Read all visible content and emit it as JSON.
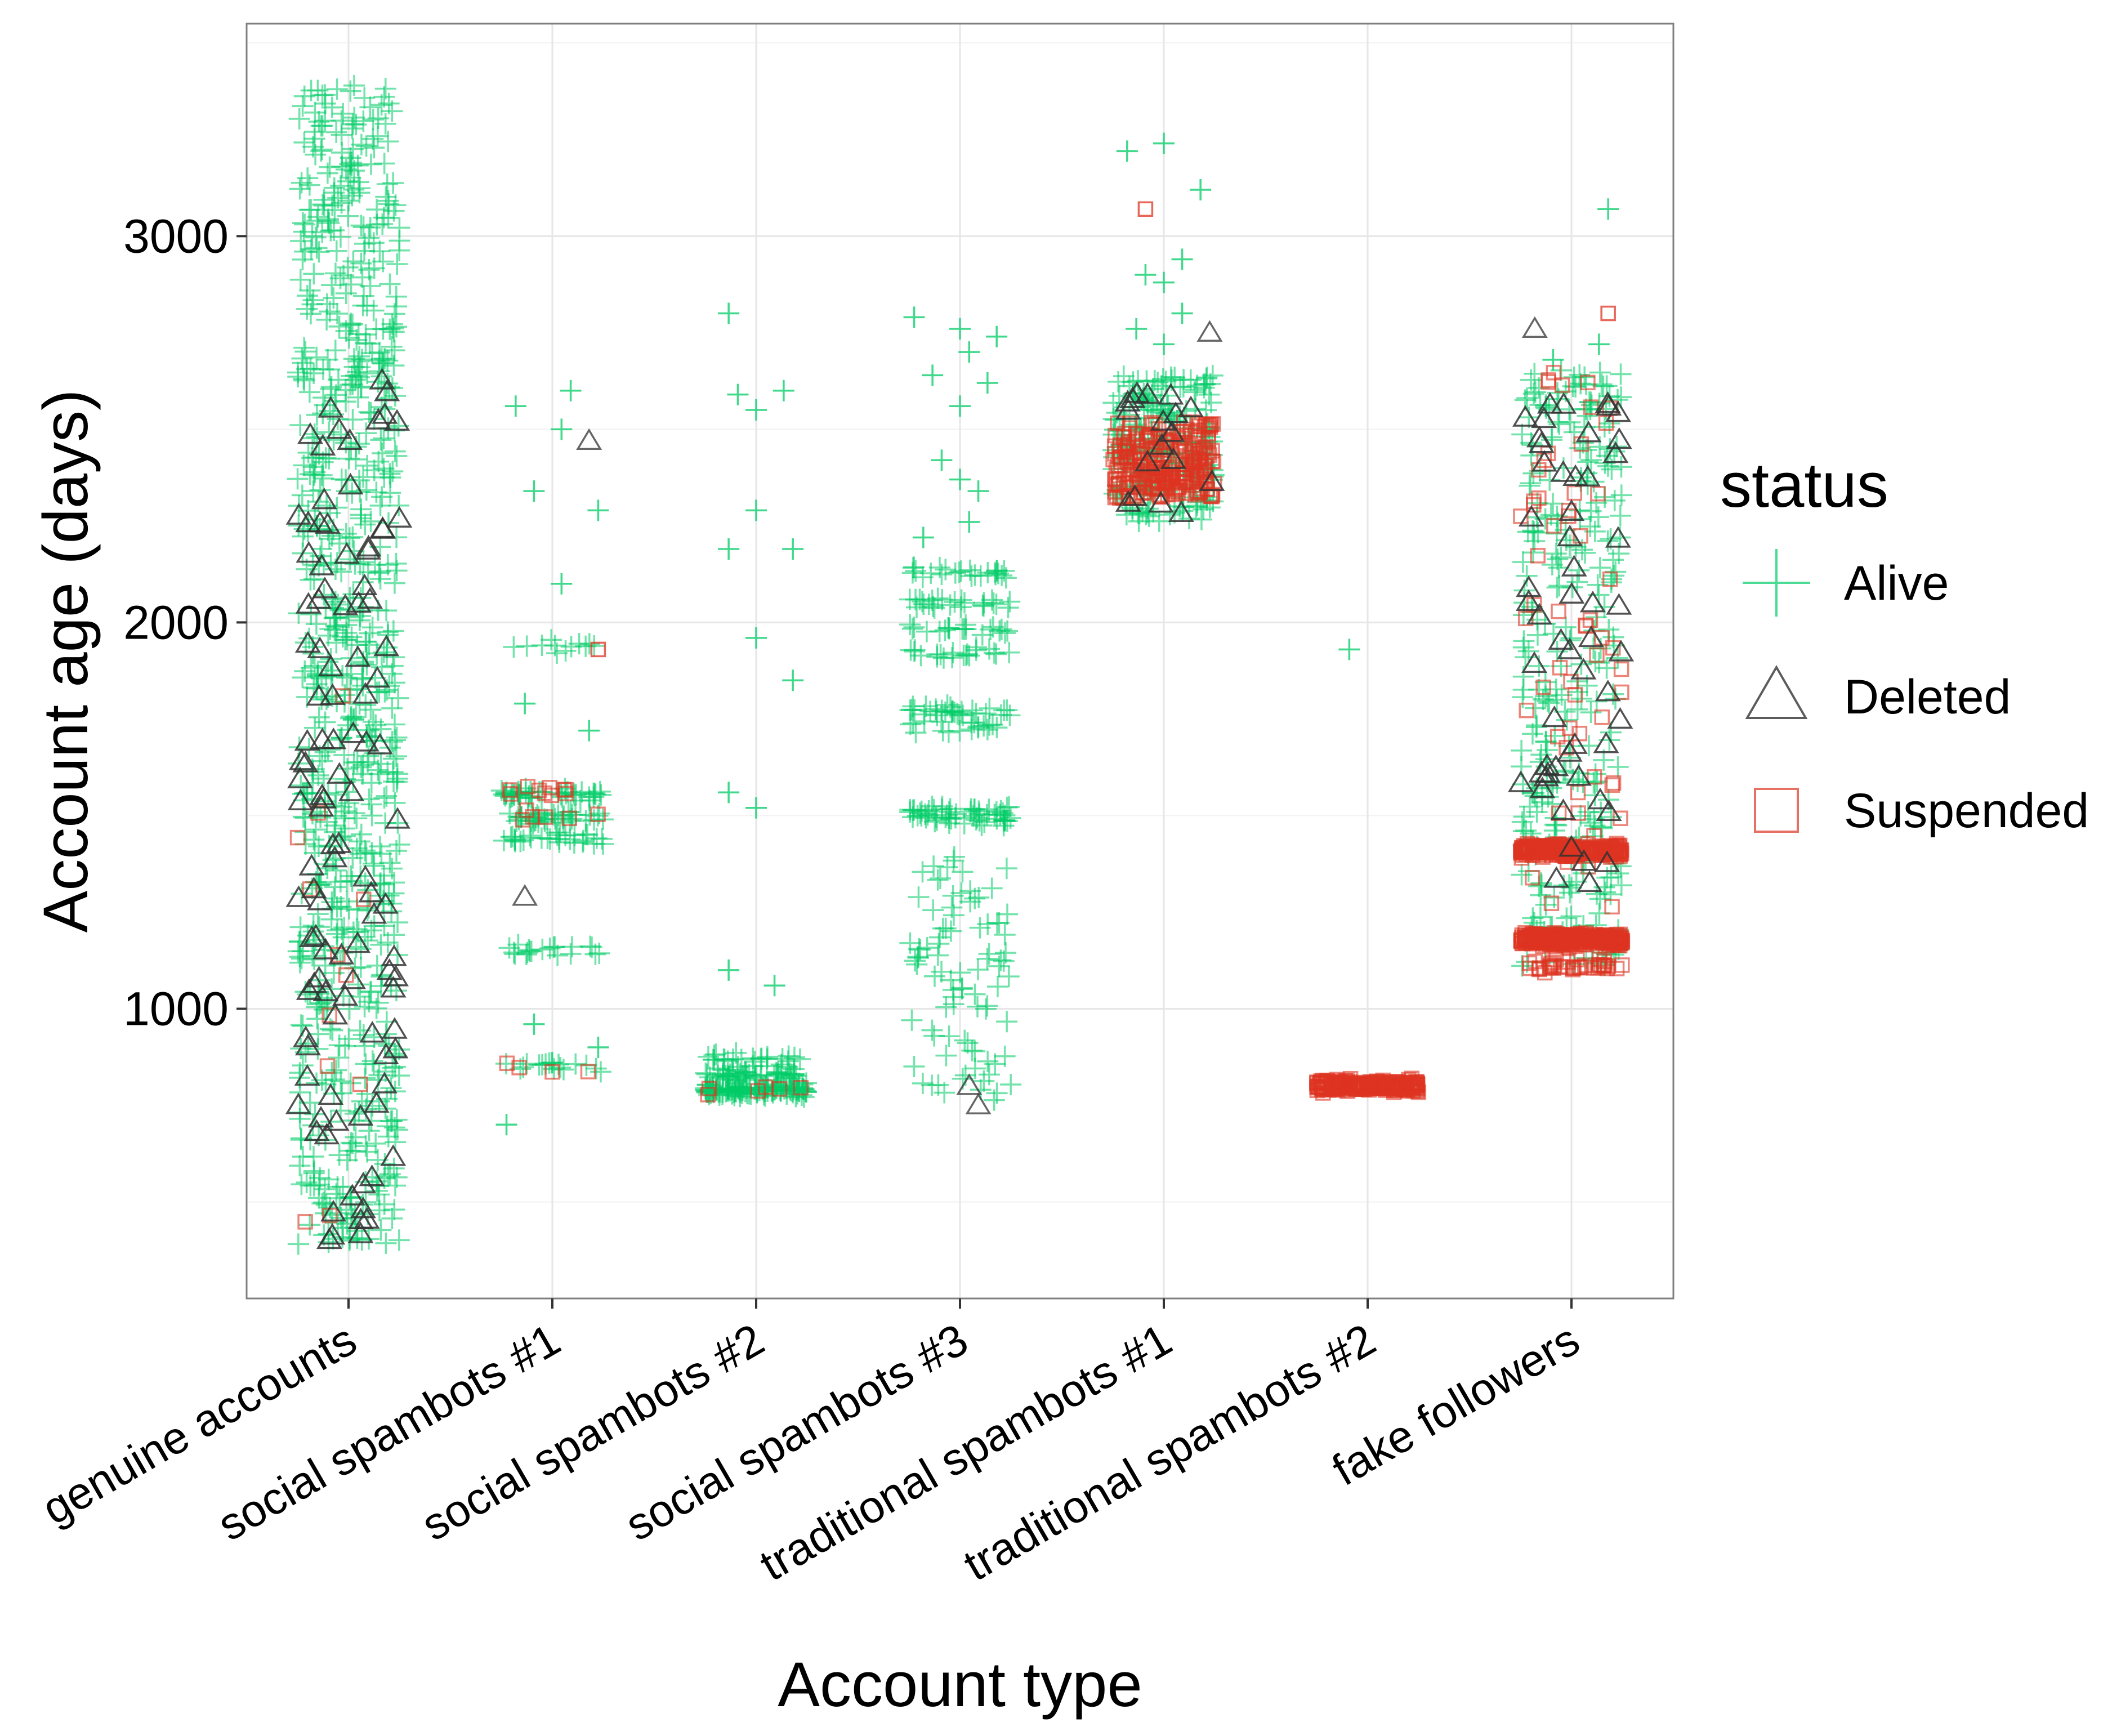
{
  "chart_data": {
    "type": "scatter",
    "xlabel": "Account type",
    "ylabel": "Account age (days)",
    "categories": [
      "genuine accounts",
      "social spambots #1",
      "social spambots #2",
      "social spambots #3",
      "traditional spambots #1",
      "traditional spambots #2",
      "fake followers"
    ],
    "y_ticks": [
      1000,
      2000,
      3000
    ],
    "ylim": [
      250,
      3550
    ],
    "grid": true,
    "legend": {
      "title": "status",
      "position": "right",
      "entries": [
        {
          "label": "Alive",
          "marker": "cross-icon",
          "color": "#00CC66"
        },
        {
          "label": "Deleted",
          "marker": "triangle-icon",
          "color": "#333333"
        },
        {
          "label": "Suspended",
          "marker": "square-icon",
          "color": "#DD3322"
        }
      ]
    },
    "series": [
      {
        "name": "Alive",
        "marker": "cross",
        "color": "#00CC66",
        "distributions": [
          {
            "category": "genuine accounts",
            "range": [
              390,
              3390
            ],
            "count": 900
          },
          {
            "category": "social spambots #1",
            "clusters": [
              [
                1555,
                45
              ],
              [
                1495,
                40
              ],
              [
                1440,
                30
              ],
              [
                1150,
                20
              ],
              [
                1940,
                12
              ],
              [
                850,
                18
              ]
            ],
            "points": [
              [
                2600,
                0.1
              ],
              [
                2560,
                -0.2
              ],
              [
                2500,
                0.05
              ],
              [
                2340,
                -0.1
              ],
              [
                2290,
                0.25
              ],
              [
                2100,
                0.05
              ],
              [
                1790,
                -0.15
              ],
              [
                1720,
                0.2
              ],
              [
                960,
                -0.1
              ],
              [
                900,
                0.25
              ],
              [
                700,
                -0.25
              ]
            ]
          },
          {
            "category": "social spambots #2",
            "clusters": [
              [
                790,
                120
              ],
              [
                830,
                50
              ],
              [
                870,
                25
              ]
            ],
            "points": [
              [
                2800,
                -0.15
              ],
              [
                2590,
                -0.1
              ],
              [
                2600,
                0.15
              ],
              [
                2550,
                0.0
              ],
              [
                2290,
                0.0
              ],
              [
                2190,
                -0.15
              ],
              [
                2190,
                0.2
              ],
              [
                1960,
                0.0
              ],
              [
                1850,
                0.2
              ],
              [
                1560,
                -0.15
              ],
              [
                1520,
                0.0
              ],
              [
                1100,
                -0.15
              ],
              [
                1060,
                0.1
              ]
            ]
          },
          {
            "category": "social spambots #3",
            "clusters": [
              [
                2130,
                25
              ],
              [
                2050,
                25
              ],
              [
                1980,
                20
              ],
              [
                1920,
                20
              ],
              [
                1770,
                30
              ],
              [
                1730,
                18
              ],
              [
                1510,
                35
              ],
              [
                1490,
                25
              ]
            ],
            "points": [
              [
                2790,
                -0.25
              ],
              [
                2760,
                0.0
              ],
              [
                2740,
                0.2
              ],
              [
                2700,
                0.05
              ],
              [
                2640,
                -0.15
              ],
              [
                2620,
                0.15
              ],
              [
                2560,
                0.0
              ],
              [
                2420,
                -0.1
              ],
              [
                2370,
                0.0
              ],
              [
                2340,
                0.1
              ],
              [
                2260,
                0.05
              ],
              [
                2220,
                -0.2
              ]
            ],
            "spread": [
              760,
              1400
            ],
            "spread_count": 90
          },
          {
            "category": "traditional spambots #1",
            "range": [
              2260,
              2640
            ],
            "count": 230,
            "points": [
              [
                3240,
                0.0
              ],
              [
                3220,
                -0.2
              ],
              [
                3120,
                0.2
              ],
              [
                2940,
                0.1
              ],
              [
                2900,
                -0.1
              ],
              [
                2880,
                0.0
              ],
              [
                2800,
                0.1
              ],
              [
                2760,
                -0.15
              ],
              [
                2720,
                0.0
              ]
            ]
          },
          {
            "category": "traditional spambots #2",
            "points": [
              [
                1930,
                -0.1
              ]
            ]
          },
          {
            "category": "fake followers",
            "range": [
              1100,
              2660
            ],
            "count": 330,
            "points": [
              [
                3070,
                0.2
              ],
              [
                2720,
                0.15
              ],
              [
                2680,
                -0.1
              ]
            ]
          }
        ]
      },
      {
        "name": "Deleted",
        "marker": "triangle",
        "color": "#333333",
        "distributions": [
          {
            "category": "genuine accounts",
            "range": [
              400,
              2650
            ],
            "count": 110
          },
          {
            "category": "social spambots #1",
            "points": [
              [
                2470,
                0.2
              ],
              [
                1290,
                -0.15
              ]
            ]
          },
          {
            "category": "social spambots #3",
            "points": [
              [
                800,
                0.05
              ],
              [
                750,
                0.1
              ]
            ]
          },
          {
            "category": "traditional spambots #1",
            "range": [
              2280,
              2600
            ],
            "count": 18,
            "points": [
              [
                2750,
                0.25
              ]
            ]
          },
          {
            "category": "fake followers",
            "range": [
              1320,
              2600
            ],
            "count": 55,
            "points": [
              [
                2760,
                -0.2
              ]
            ]
          }
        ]
      },
      {
        "name": "Suspended",
        "marker": "square",
        "color": "#DD3322",
        "distributions": [
          {
            "category": "genuine accounts",
            "range": [
              420,
              1900
            ],
            "count": 12
          },
          {
            "category": "social spambots #1",
            "clusters": [
              [
                1570,
                10
              ],
              [
                1500,
                6
              ],
              [
                850,
                4
              ]
            ],
            "points": [
              [
                1930,
                0.25
              ]
            ]
          },
          {
            "category": "social spambots #2",
            "clusters": [
              [
                790,
                6
              ]
            ]
          },
          {
            "category": "traditional spambots #1",
            "range": [
              2320,
              2520
            ],
            "count": 260,
            "points": [
              [
                3070,
                -0.1
              ]
            ]
          },
          {
            "category": "traditional spambots #2",
            "clusters": [
              [
                800,
                220
              ]
            ]
          },
          {
            "category": "fake followers",
            "clusters": [
              [
                1410,
                260
              ],
              [
                1180,
                300
              ],
              [
                1110,
                40
              ]
            ],
            "range": [
              1250,
              2650
            ],
            "count": 60,
            "points": [
              [
                2800,
                0.2
              ]
            ]
          }
        ]
      }
    ]
  }
}
